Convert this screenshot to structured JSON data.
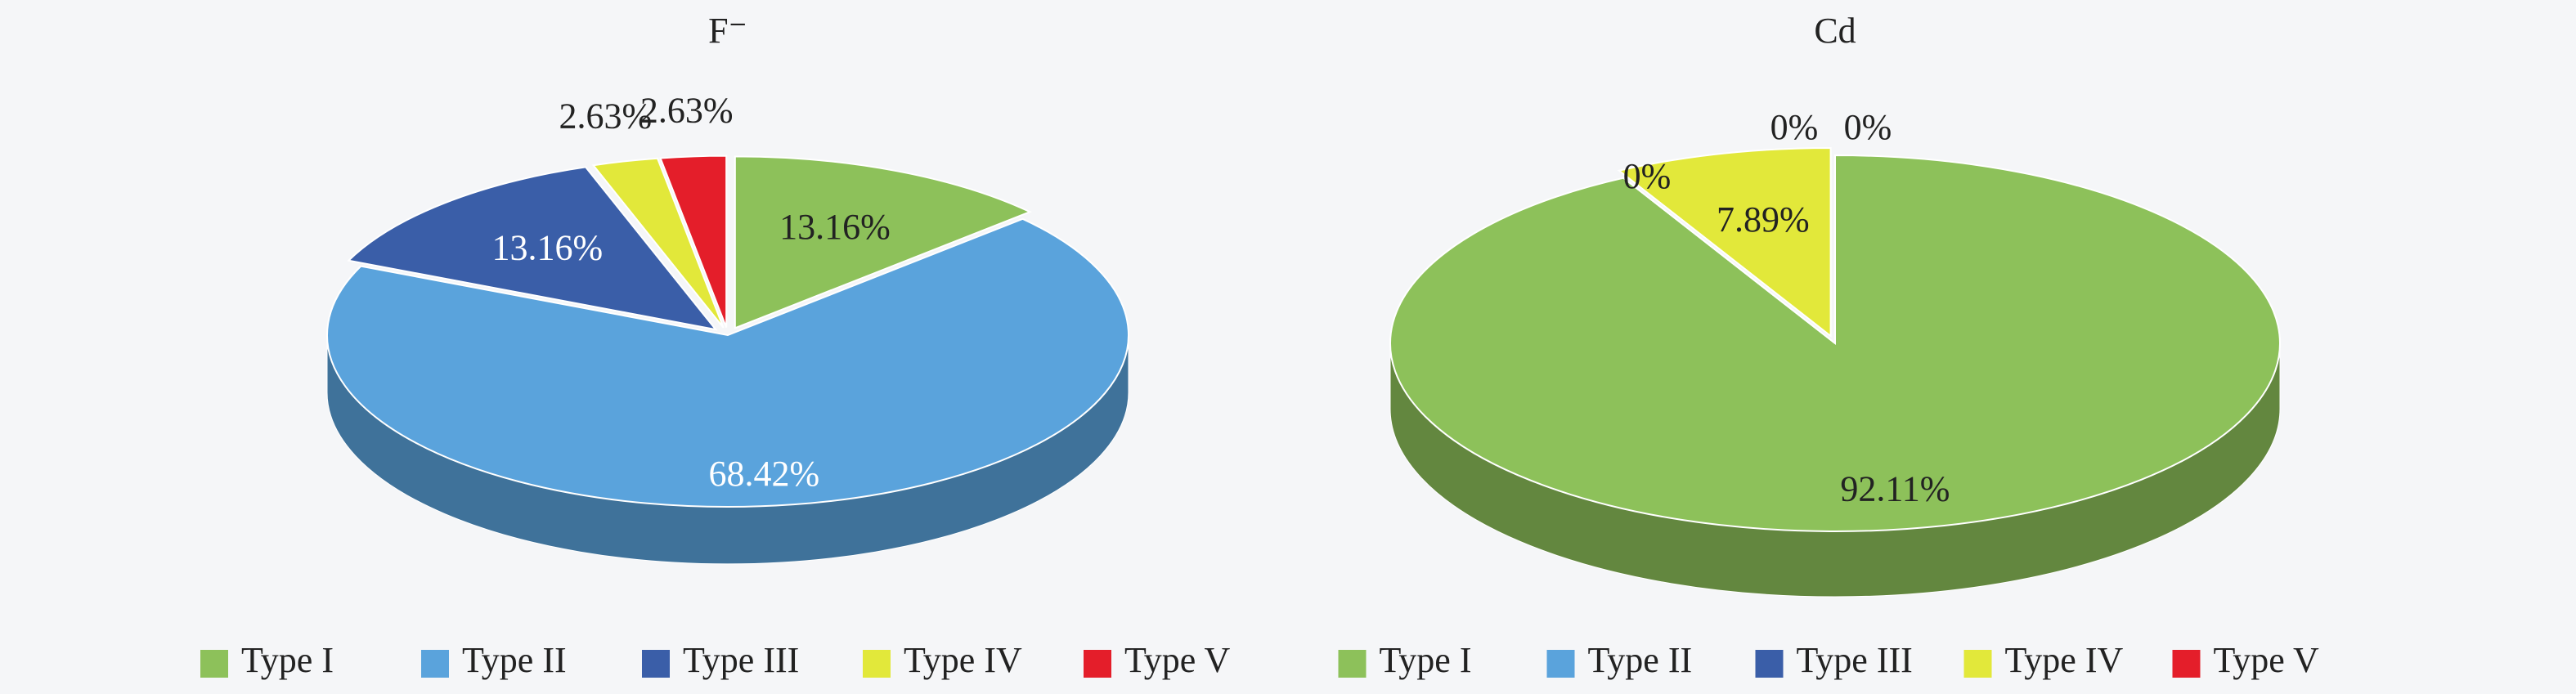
{
  "chart_data": [
    {
      "type": "pie",
      "title": "F⁻",
      "categories": [
        "Type I",
        "Type II",
        "Type III",
        "Type IV",
        "Type V"
      ],
      "values": [
        13.16,
        68.42,
        13.16,
        2.63,
        2.63
      ],
      "value_labels": [
        "13.16%",
        "68.42%",
        "13.16%",
        "2.63%",
        "2.63%"
      ],
      "colors": [
        "#8dc15a",
        "#5aa3dc",
        "#3a5ea8",
        "#e2e83a",
        "#e41e2a"
      ]
    },
    {
      "type": "pie",
      "title": "Cd",
      "categories": [
        "Type I",
        "Type II",
        "Type III",
        "Type IV",
        "Type V"
      ],
      "values": [
        92.11,
        0,
        0,
        7.89,
        0
      ],
      "value_labels": [
        "92.11%",
        "0%",
        "0%",
        "7.89%",
        "0%"
      ],
      "colors": [
        "#8dc15a",
        "#5aa3dc",
        "#3a5ea8",
        "#e2e83a",
        "#e41e2a"
      ]
    }
  ]
}
